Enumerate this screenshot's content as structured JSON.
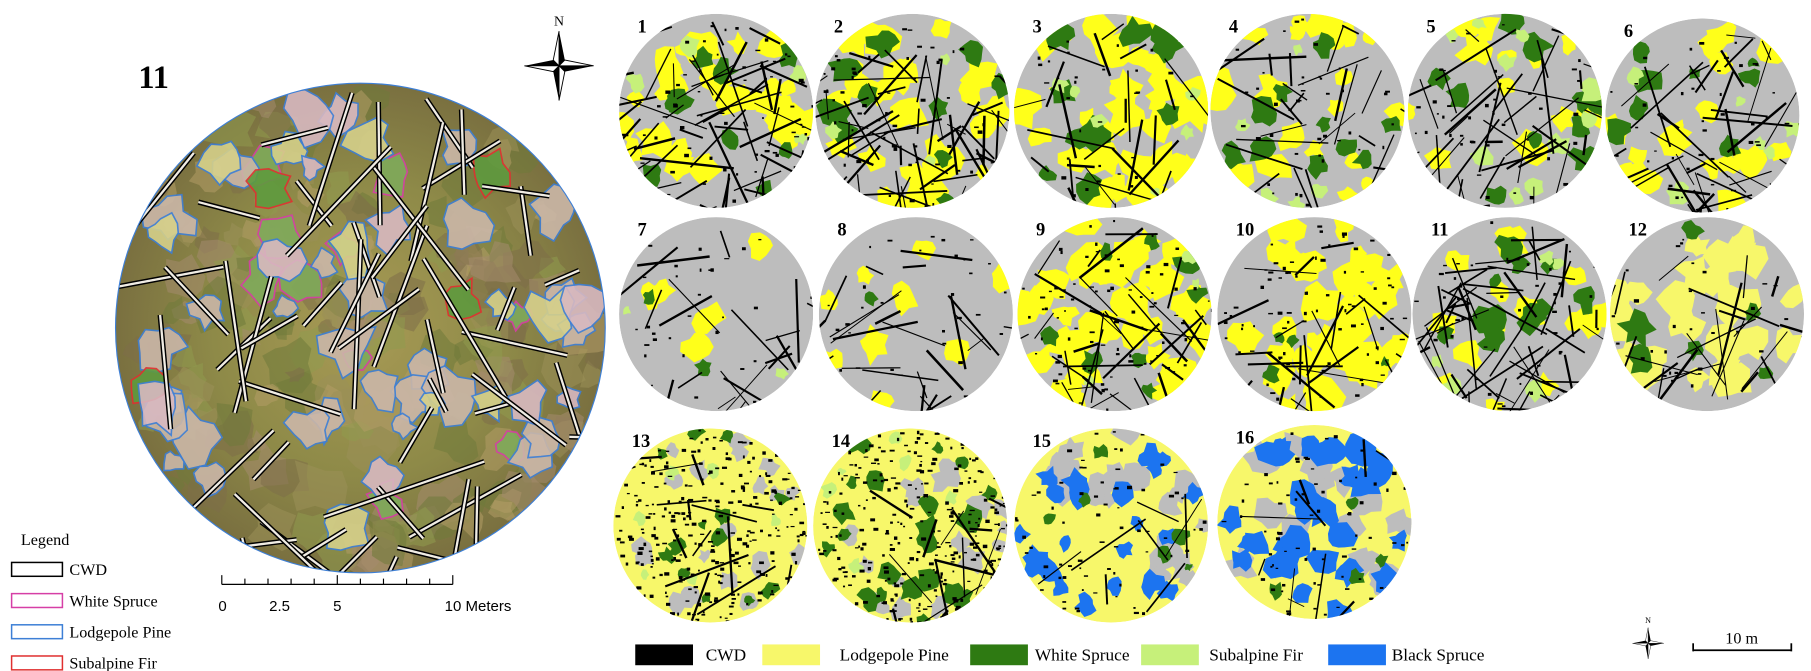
{
  "main_map": {
    "label": "11",
    "north": "N",
    "legend": {
      "title": "Legend",
      "items": [
        {
          "label": "CWD",
          "color": "#000000"
        },
        {
          "label": "White Spruce",
          "color": "#d63fa6"
        },
        {
          "label": "Lodgepole Pine",
          "color": "#3d7fd6"
        },
        {
          "label": "Subalpine Fir",
          "color": "#e03030"
        }
      ]
    },
    "scale_labels": [
      "0",
      "2.5",
      "5",
      "10 Meters"
    ]
  },
  "plots": {
    "labels": [
      "1",
      "2",
      "3",
      "4",
      "5",
      "6",
      "7",
      "8",
      "9",
      "10",
      "11",
      "12",
      "13",
      "14",
      "15",
      "16"
    ]
  },
  "class_legend": {
    "items": [
      {
        "label": "CWD",
        "color": "#000000"
      },
      {
        "label": "Lodgepole Pine",
        "color": "#f7f76a"
      },
      {
        "label": "White Spruce",
        "color": "#2e7a12"
      },
      {
        "label": "Subalpine Fir",
        "color": "#c6f07a"
      },
      {
        "label": "Black Spruce",
        "color": "#1c74f0"
      }
    ]
  },
  "scale_bar": {
    "label": "10 m",
    "north": "N"
  }
}
